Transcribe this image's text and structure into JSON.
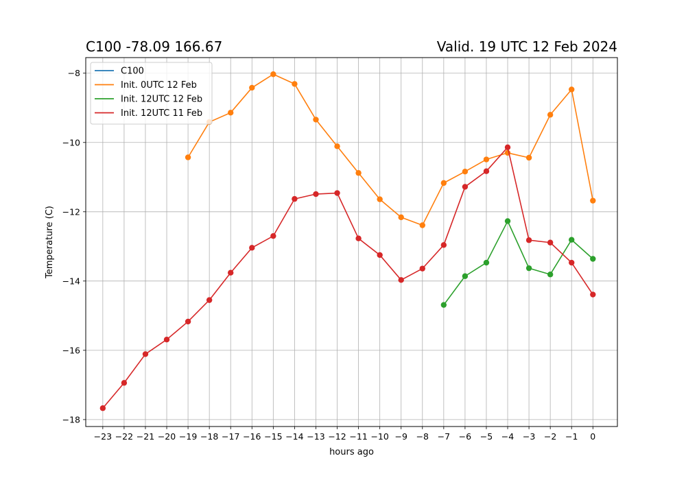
{
  "titles": {
    "left": "C100 -78.09 166.67",
    "right": "Valid. 19 UTC 12 Feb 2024"
  },
  "chart_data": {
    "type": "line",
    "xlabel": "hours ago",
    "ylabel": "Temperature (C)",
    "xlim": [
      -23.8,
      1.15
    ],
    "ylim": [
      -18.2,
      -7.55
    ],
    "x_ticks": [
      -23,
      -22,
      -21,
      -20,
      -19,
      -18,
      -17,
      -16,
      -15,
      -14,
      -13,
      -12,
      -11,
      -10,
      -9,
      -8,
      -7,
      -6,
      -5,
      -4,
      -3,
      -2,
      -1,
      0
    ],
    "x_tick_labels": [
      "−23",
      "−22",
      "−21",
      "−20",
      "−19",
      "−18",
      "−17",
      "−16",
      "−15",
      "−14",
      "−13",
      "−12",
      "−11",
      "−10",
      "−9",
      "−8",
      "−7",
      "−6",
      "−5",
      "−4",
      "−3",
      "−2",
      "−1",
      "0"
    ],
    "y_ticks": [
      -18,
      -16,
      -14,
      -12,
      -10,
      -8
    ],
    "y_tick_labels": [
      "−18",
      "−16",
      "−14",
      "−12",
      "−10",
      "−8"
    ],
    "grid": true,
    "legend_position": "top-left",
    "series": [
      {
        "name": "C100",
        "color": "#1f77b4",
        "x": [],
        "y": []
      },
      {
        "name": "Init. 0UTC 12 Feb",
        "color": "#ff7f0e",
        "x": [
          -19,
          -18,
          -17,
          -16,
          -15,
          -14,
          -13,
          -12,
          -11,
          -10,
          -9,
          -8,
          -7,
          -6,
          -5,
          -4,
          -3,
          -2,
          -1,
          0
        ],
        "y": [
          -10.43,
          -9.41,
          -9.14,
          -8.42,
          -8.03,
          -8.31,
          -9.34,
          -10.11,
          -10.88,
          -11.64,
          -12.16,
          -12.39,
          -11.17,
          -10.84,
          -10.49,
          -10.3,
          -10.44,
          -9.2,
          -8.47,
          -11.68
        ]
      },
      {
        "name": "Init. 12UTC 12 Feb",
        "color": "#2ca02c",
        "x": [
          -7,
          -6,
          -5,
          -4,
          -3,
          -2,
          -1,
          0
        ],
        "y": [
          -14.69,
          -13.86,
          -13.47,
          -12.27,
          -13.63,
          -13.81,
          -12.81,
          -13.36
        ]
      },
      {
        "name": "Init. 12UTC 11 Feb",
        "color": "#d62728",
        "x": [
          -23,
          -22,
          -21,
          -20,
          -19,
          -18,
          -17,
          -16,
          -15,
          -14,
          -13,
          -12,
          -11,
          -10,
          -9,
          -8,
          -7,
          -6,
          -5,
          -4,
          -3,
          -2,
          -1,
          0
        ],
        "y": [
          -17.67,
          -16.94,
          -16.11,
          -15.69,
          -15.17,
          -14.55,
          -13.76,
          -13.04,
          -12.7,
          -11.63,
          -11.49,
          -11.46,
          -12.77,
          -13.25,
          -13.97,
          -13.64,
          -12.96,
          -11.28,
          -10.83,
          -10.14,
          -12.82,
          -12.89,
          -13.47,
          -14.39
        ]
      }
    ]
  }
}
